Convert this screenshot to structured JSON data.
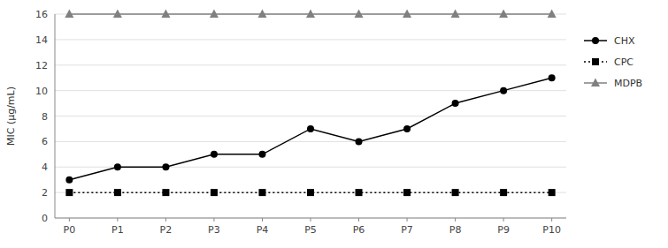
{
  "chart_data": {
    "type": "line",
    "categories": [
      "P0",
      "P1",
      "P2",
      "P3",
      "P4",
      "P5",
      "P6",
      "P7",
      "P8",
      "P9",
      "P10"
    ],
    "series": [
      {
        "name": "CHX",
        "color": "#000000",
        "marker": "circle",
        "line_style": "solid",
        "values": [
          3,
          4,
          4,
          5,
          5,
          7,
          6,
          7,
          9,
          10,
          11
        ]
      },
      {
        "name": "CPC",
        "color": "#000000",
        "marker": "square",
        "line_style": "dotted",
        "values": [
          2,
          2,
          2,
          2,
          2,
          2,
          2,
          2,
          2,
          2,
          2
        ]
      },
      {
        "name": "MDPB",
        "color": "#808080",
        "marker": "triangle",
        "line_style": "solid",
        "values": [
          16,
          16,
          16,
          16,
          16,
          16,
          16,
          16,
          16,
          16,
          16
        ]
      }
    ],
    "ylabel": "MIC (μg/mL)",
    "ylim": [
      0,
      16
    ],
    "yticks": [
      0,
      2,
      4,
      6,
      8,
      10,
      12,
      14,
      16
    ],
    "grid": true,
    "legend": "right"
  }
}
